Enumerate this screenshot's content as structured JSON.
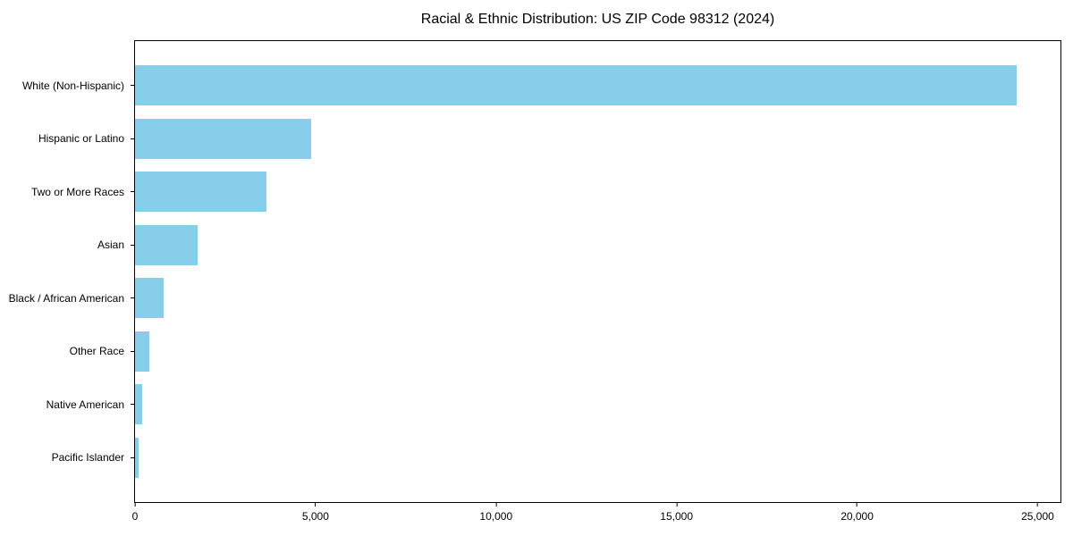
{
  "chart_data": {
    "type": "bar",
    "orientation": "horizontal",
    "title": "Racial & Ethnic Distribution: US ZIP Code 98312 (2024)",
    "categories": [
      "White (Non-Hispanic)",
      "Hispanic or Latino",
      "Two or More Races",
      "Asian",
      "Black / African American",
      "Other Race",
      "Native American",
      "Pacific Islander"
    ],
    "values": [
      24412,
      4885,
      3651,
      1736,
      792,
      398,
      203,
      97
    ],
    "xlabel": "",
    "ylabel": "",
    "xlim": [
      0,
      25633
    ],
    "x_ticks": [
      0,
      5000,
      10000,
      15000,
      20000,
      25000
    ],
    "x_tick_labels": [
      "0",
      "5,000",
      "10,000",
      "15,000",
      "20,000",
      "25,000"
    ],
    "bar_color": "#87CEEB",
    "text_color": "#000000",
    "grid": false,
    "legend": null,
    "spines": "full-box"
  }
}
